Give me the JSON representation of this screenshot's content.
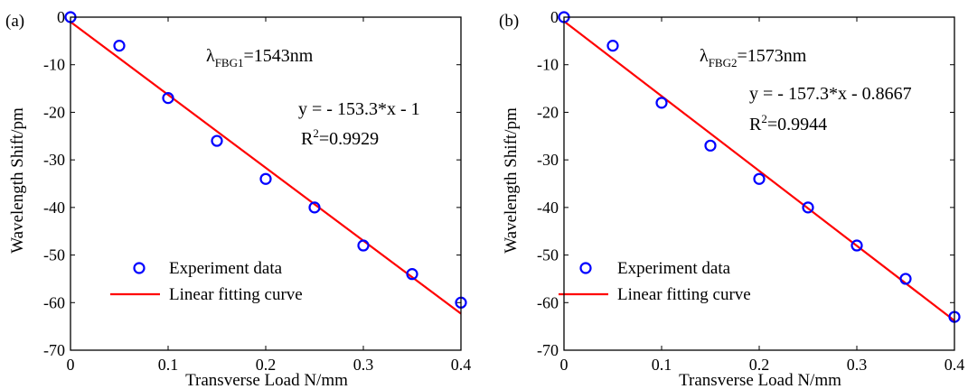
{
  "chart_data": [
    {
      "type": "scatter",
      "panel_label": "(a)",
      "xlabel": "Transverse Load N/mm",
      "ylabel": "Wavelength Shift/pm",
      "xlim": [
        0,
        0.4
      ],
      "ylim": [
        -70,
        0
      ],
      "xticks": [
        0,
        0.1,
        0.2,
        0.3,
        0.4
      ],
      "xtick_labels": [
        "0",
        "0.1",
        "0.2",
        "0.3",
        "0.4"
      ],
      "yticks": [
        0,
        -10,
        -20,
        -30,
        -40,
        -50,
        -60,
        -70
      ],
      "ytick_labels": [
        "0",
        "-10",
        "-20",
        "-30",
        "-40",
        "-50",
        "-60",
        "-70"
      ],
      "grid": false,
      "legend_position": "bottom-left",
      "annotation": {
        "lambda_symbol": "λ",
        "lambda_sub": "FBG1",
        "lambda_value": "=1543nm",
        "equation": "y = - 153.3*x - 1",
        "r2_prefix": "R",
        "r2_exp": "2",
        "r2_value": "=0.9929"
      },
      "series": [
        {
          "name": "Experiment data",
          "kind": "points",
          "color": "#0000ff",
          "x": [
            0,
            0.05,
            0.1,
            0.15,
            0.2,
            0.25,
            0.3,
            0.35,
            0.4
          ],
          "y": [
            0,
            -6,
            -17,
            -26,
            -34,
            -40,
            -48,
            -54,
            -60
          ]
        },
        {
          "name": "Linear fitting curve",
          "kind": "fit-line",
          "color": "#ff0000",
          "slope": -153.3,
          "intercept": -1
        }
      ]
    },
    {
      "type": "scatter",
      "panel_label": "(b)",
      "xlabel": "Transverse Load N/mm",
      "ylabel": "Wavelength Shift/pm",
      "xlim": [
        0,
        0.4
      ],
      "ylim": [
        -70,
        0
      ],
      "xticks": [
        0,
        0.1,
        0.2,
        0.3,
        0.4
      ],
      "xtick_labels": [
        "0",
        "0.1",
        "0.2",
        "0.3",
        "0.4"
      ],
      "yticks": [
        0,
        -10,
        -20,
        -30,
        -40,
        -50,
        -60,
        -70
      ],
      "ytick_labels": [
        "0",
        "-10",
        "-20",
        "-30",
        "-40",
        "-50",
        "-60",
        "-70"
      ],
      "grid": false,
      "legend_position": "bottom-left",
      "annotation": {
        "lambda_symbol": "λ",
        "lambda_sub": "FBG2",
        "lambda_value": "=1573nm",
        "equation": "y = - 157.3*x - 0.8667",
        "r2_prefix": "R",
        "r2_exp": "2",
        "r2_value": "=0.9944"
      },
      "series": [
        {
          "name": "Experiment data",
          "kind": "points",
          "color": "#0000ff",
          "x": [
            0,
            0.05,
            0.1,
            0.15,
            0.2,
            0.25,
            0.3,
            0.35,
            0.4
          ],
          "y": [
            0,
            -6,
            -18,
            -27,
            -34,
            -40,
            -48,
            -55,
            -63
          ]
        },
        {
          "name": "Linear fitting curve",
          "kind": "fit-line",
          "color": "#ff0000",
          "slope": -157.3,
          "intercept": -0.8667
        }
      ]
    }
  ]
}
